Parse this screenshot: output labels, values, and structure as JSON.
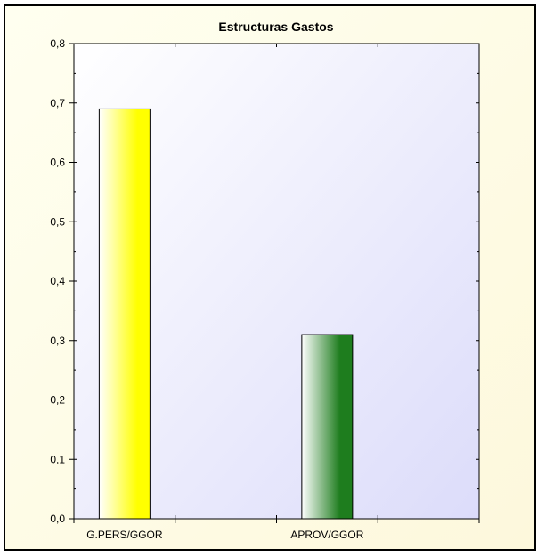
{
  "chart_data": {
    "type": "bar",
    "title": "Estructuras Gastos",
    "xlabel": "",
    "ylabel": "",
    "ylim": [
      0,
      0.8
    ],
    "yticks": [
      "0,0",
      "0,1",
      "0,2",
      "0,3",
      "0,4",
      "0,5",
      "0,6",
      "0,7",
      "0,8"
    ],
    "categories": [
      "G.PERS/GGOR",
      "APROV/GGOR"
    ],
    "values": [
      0.69,
      0.31
    ],
    "colors": [
      "#ffff00",
      "#1e7d1e"
    ],
    "grid": false,
    "legend": "none"
  }
}
